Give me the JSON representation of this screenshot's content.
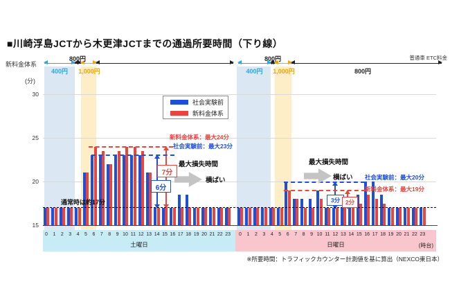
{
  "page": {
    "title": "■川崎浮島JCTから木更津JCTまでの通過所要時間（下り線）",
    "footnote": "※所要時間：トラフィックカウンター計測値を基に算出（NEXCO東日本）"
  },
  "fare_header": {
    "row_label": "新料金体系",
    "vehicle_label": "普通車 ETC料金",
    "sat_400": "400円",
    "sat_800": "800円",
    "sat_1000": "1,000円",
    "sun_400": "400円",
    "sun_800_small": "800円",
    "sun_1000": "1,000円",
    "sun_800_long": "800円"
  },
  "legend": {
    "before": "社会実験前",
    "new": "新料金体系"
  },
  "y_axis": {
    "unit": "(分)",
    "t30": "30",
    "t25": "25",
    "t20": "20",
    "t15": "15"
  },
  "x_axis": {
    "saturday": "土曜日",
    "sunday": "日曜日",
    "unit": "(時台)"
  },
  "annotations": {
    "normal": "通常時は約17分",
    "sat_new_max": "新料金体系：最大24分",
    "sat_before_max": "社会実験前：最大23分",
    "sun_before_max": "社会実験前：最大20分",
    "sun_new_max": "新料金体系：最大19分",
    "max_loss": "最大損失時間",
    "flat": "横ばい",
    "sat_new_diff": "7分",
    "sat_before_diff": "6分",
    "sun_before_diff": "3分",
    "sun_new_diff": "2分"
  },
  "colors": {
    "before_blue": "#1d4fd7",
    "new_red": "#e8453f",
    "fare_blue": "#2ba6e0",
    "fare_gold": "#f0a500",
    "band_blue": "#dbe8f4",
    "band_yellow": "#fdeec7",
    "strip_saturday": "#c8ecf6",
    "strip_sunday": "#f8c6cc"
  },
  "chart_data": {
    "type": "bar",
    "title": "川崎浮島JCTから木更津JCTまでの通過所要時間（下り線）",
    "ylabel": "分",
    "ylim": [
      15,
      30
    ],
    "yticks": [
      15,
      20,
      25,
      30
    ],
    "normal_time_minutes": 17,
    "hours": [
      "0",
      "1",
      "2",
      "3",
      "4",
      "5",
      "6",
      "7",
      "8",
      "9",
      "10",
      "11",
      "12",
      "13",
      "14",
      "15",
      "16",
      "17",
      "18",
      "19",
      "20",
      "21",
      "22",
      "23"
    ],
    "sections": [
      {
        "day": "土曜日",
        "series": [
          {
            "name": "社会実験前",
            "max": 23,
            "values": [
              17,
              17,
              17,
              17,
              17,
              21,
              23,
              23,
              22,
              23,
              23,
              23,
              23,
              21,
              17,
              17,
              17,
              18.5,
              18.5,
              17,
              17,
              17,
              17,
              17
            ]
          },
          {
            "name": "新料金体系",
            "max": 24,
            "values": [
              17,
              17,
              17,
              17,
              17,
              21,
              24,
              23.5,
              22,
              23.5,
              24,
              24,
              23.5,
              21,
              17,
              17,
              17,
              17,
              17,
              17,
              17,
              17,
              17,
              17
            ]
          }
        ],
        "loss_before": "6分",
        "loss_new": "7分",
        "fare_bands": [
          {
            "label": "400円",
            "hours": "0-4"
          },
          {
            "label": "800円",
            "hours": "4-5"
          },
          {
            "label": "1,000円",
            "hours": "5-7"
          },
          {
            "label": "800円",
            "hours": "7-24"
          }
        ]
      },
      {
        "day": "日曜日",
        "series": [
          {
            "name": "社会実験前",
            "max": 20,
            "values": [
              17,
              17,
              17,
              17,
              17,
              17,
              20,
              18,
              18,
              18,
              19,
              17,
              17,
              17,
              18,
              18.5,
              20,
              20,
              18.5,
              17,
              17,
              17,
              17,
              17
            ]
          },
          {
            "name": "新料金体系",
            "max": 19,
            "values": [
              17,
              17,
              17,
              17,
              17,
              17,
              19,
              18,
              17,
              17,
              18,
              17,
              17,
              17,
              17,
              17.5,
              18.5,
              18,
              17.5,
              17,
              17,
              17,
              17,
              17
            ]
          }
        ],
        "loss_before": "3分",
        "loss_new": "2分",
        "fare_bands": [
          {
            "label": "400円",
            "hours": "0-4"
          },
          {
            "label": "800円",
            "hours": "4-5"
          },
          {
            "label": "1,000円",
            "hours": "5-7"
          },
          {
            "label": "800円",
            "hours": "7-24"
          }
        ]
      }
    ]
  }
}
